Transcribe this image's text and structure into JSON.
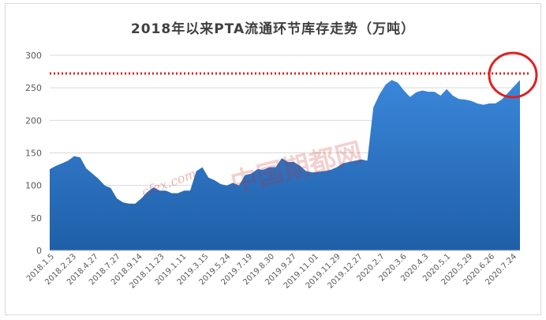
{
  "chart_data": {
    "type": "area",
    "title": "2018年以来PTA流通环节库存走势（万吨）",
    "xlabel": "",
    "ylabel": "",
    "ylim": [
      0,
      300
    ],
    "yticks": [
      0,
      50,
      100,
      150,
      200,
      250,
      300
    ],
    "grid": true,
    "series_color": "#3a86d9",
    "reference_line": {
      "value": 272,
      "style": "dotted",
      "color": "#e02020"
    },
    "highlight_circle": {
      "color": "#e02020",
      "at": "end"
    },
    "x_tick_labels": [
      "2018.1.5",
      "2018.2.23",
      "2018.4.27",
      "2018.7.27",
      "2018.9.14",
      "2018.11.23",
      "2019.1.11",
      "2019.3.15",
      "2019.5.24",
      "2019.7.19",
      "2019.8.30",
      "2019.9.27",
      "2019.11.01",
      "2019.11.29",
      "2019.12.27",
      "2020.2.7",
      "2020.3.6",
      "2020.4.3",
      "2020.5.1",
      "2020.5.29",
      "2020.6.26",
      "2020.7.24"
    ],
    "values": [
      125,
      130,
      134,
      138,
      145,
      143,
      126,
      118,
      110,
      100,
      96,
      80,
      74,
      72,
      72,
      80,
      90,
      97,
      92,
      92,
      88,
      88,
      92,
      92,
      122,
      128,
      112,
      108,
      102,
      100,
      104,
      100,
      116,
      118,
      125,
      124,
      128,
      128,
      142,
      136,
      136,
      130,
      122,
      120,
      121,
      122,
      124,
      128,
      134,
      136,
      138,
      140,
      138,
      220,
      240,
      255,
      262,
      258,
      246,
      236,
      243,
      246,
      244,
      244,
      238,
      248,
      238,
      233,
      232,
      230,
      226,
      224,
      226,
      226,
      232,
      242,
      252,
      262
    ]
  },
  "watermark_text": "中国期都网",
  "watermark_logo": "cfex.com"
}
